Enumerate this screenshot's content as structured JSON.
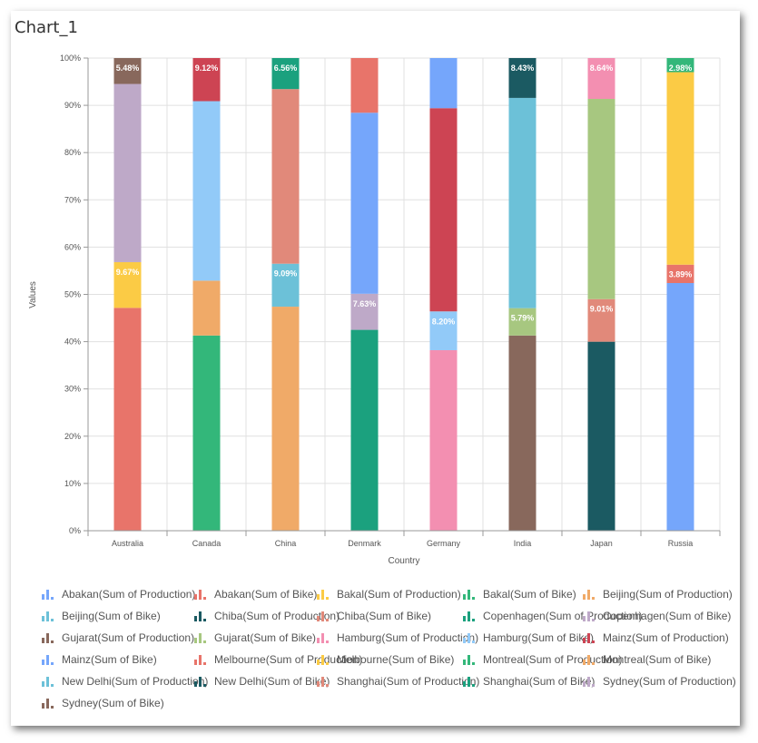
{
  "title": "Chart_1",
  "chart_data": {
    "type": "bar",
    "stacked": "percent",
    "title": "Chart_1",
    "xlabel": "Country",
    "ylabel": "Values",
    "ylim": [
      0,
      100
    ],
    "yticks": [
      "0%",
      "10%",
      "20%",
      "30%",
      "40%",
      "50%",
      "60%",
      "70%",
      "80%",
      "90%",
      "100%"
    ],
    "grid": true,
    "legend_position": "bottom",
    "categories": [
      "Australia",
      "Canada",
      "China",
      "Denmark",
      "Germany",
      "India",
      "Japan",
      "Russia"
    ],
    "series": [
      {
        "name": "Abakan(Sum of Production)",
        "color": "#75A6FB",
        "values": [
          0,
          0,
          0,
          0,
          0,
          0,
          0,
          52.4
        ]
      },
      {
        "name": "Abakan(Sum of Bike)",
        "color": "#E8746A",
        "values": [
          47.15,
          0,
          0,
          0,
          0,
          0,
          0,
          3.89
        ]
      },
      {
        "name": "Bakal(Sum of Production)",
        "color": "#FBCB45",
        "values": [
          9.67,
          0,
          0,
          0,
          0,
          0,
          0,
          0
        ]
      },
      {
        "name": "Bakal(Sum of Bike)",
        "color": "#33B77A",
        "values": [
          0,
          0,
          0,
          0,
          0,
          0,
          0,
          2.98
        ]
      },
      {
        "name": "Beijing(Sum of Production)",
        "color": "#F0AA68",
        "values": [
          0,
          0,
          47.4,
          0,
          0,
          0,
          0,
          0
        ]
      },
      {
        "name": "Beijing(Sum of Bike)",
        "color": "#6CC1D8",
        "values": [
          0,
          0,
          9.09,
          0,
          0,
          0,
          0,
          0
        ]
      },
      {
        "name": "Chiba(Sum of Production)",
        "color": "#1B5A62",
        "values": [
          0,
          0,
          0,
          0,
          0,
          0,
          39.99,
          0
        ]
      },
      {
        "name": "Chiba(Sum of Bike)",
        "color": "#E1897A",
        "values": [
          0,
          0,
          0,
          0,
          0,
          0,
          9.01,
          0
        ]
      },
      {
        "name": "Copenhagen(Sum of Production)",
        "color": "#1BA17E",
        "values": [
          0,
          0,
          0,
          42.5,
          0,
          0,
          0,
          0
        ]
      },
      {
        "name": "Copenhagen(Sum of Bike)",
        "color": "#BEA9C8",
        "values": [
          0,
          0,
          0,
          7.63,
          0,
          0,
          0,
          0
        ]
      },
      {
        "name": "Gujarat(Sum of Production)",
        "color": "#88685C",
        "values": [
          0,
          0,
          0,
          0,
          0,
          41.3,
          0,
          0
        ]
      },
      {
        "name": "Gujarat(Sum of Bike)",
        "color": "#A7C780",
        "values": [
          0,
          0,
          0,
          0,
          0,
          5.79,
          42.36,
          0
        ]
      },
      {
        "name": "Hamburg(Sum of Production)",
        "color": "#F38FB1",
        "values": [
          0,
          0,
          0,
          0,
          38.2,
          0,
          8.64,
          0
        ]
      },
      {
        "name": "Hamburg(Sum of Bike)",
        "color": "#92CAF8",
        "values": [
          0,
          37.98,
          0,
          0,
          8.2,
          0,
          0,
          0
        ]
      },
      {
        "name": "Mainz(Sum of Production)",
        "color": "#CD4453",
        "values": [
          0,
          9.12,
          0,
          0,
          43.0,
          0,
          0,
          0
        ]
      },
      {
        "name": "Mainz(Sum of Bike)",
        "color": "#75A6FB",
        "values": [
          0,
          0,
          0,
          38.3,
          10.6,
          0,
          0,
          0
        ]
      },
      {
        "name": "Melbourne(Sum of Production)",
        "color": "#E8746A",
        "values": [
          0,
          0,
          0,
          11.57,
          0,
          0,
          0,
          0
        ]
      },
      {
        "name": "Melbourne(Sum of Bike)",
        "color": "#FBCB45",
        "values": [
          0,
          0,
          0,
          0,
          0,
          0,
          0,
          40.73
        ]
      },
      {
        "name": "Montreal(Sum of Production)",
        "color": "#33B77A",
        "values": [
          0,
          41.3,
          0,
          0,
          0,
          0,
          0,
          0
        ]
      },
      {
        "name": "Montreal(Sum of Bike)",
        "color": "#F0AA68",
        "values": [
          0,
          11.6,
          0,
          0,
          0,
          0,
          0,
          0
        ]
      },
      {
        "name": "New Delhi(Sum of Production)",
        "color": "#6CC1D8",
        "values": [
          0,
          0,
          0,
          0,
          0,
          44.48,
          0,
          0
        ]
      },
      {
        "name": "New Delhi(Sum of Bike)",
        "color": "#1B5A62",
        "values": [
          0,
          0,
          0,
          0,
          0,
          8.43,
          0,
          0
        ]
      },
      {
        "name": "Shanghai(Sum of Production)",
        "color": "#E1897A",
        "values": [
          0,
          0,
          36.95,
          0,
          0,
          0,
          0,
          0
        ]
      },
      {
        "name": "Shanghai(Sum of Bike)",
        "color": "#1BA17E",
        "values": [
          0,
          0,
          6.56,
          0,
          0,
          0,
          0,
          0
        ]
      },
      {
        "name": "Sydney(Sum of Production)",
        "color": "#BEA9C8",
        "values": [
          37.7,
          0,
          0,
          0,
          0,
          0,
          0,
          0
        ]
      },
      {
        "name": "Sydney(Sum of Bike)",
        "color": "#88685C",
        "values": [
          5.48,
          0,
          0,
          0,
          0,
          0,
          0,
          0
        ]
      }
    ],
    "data_labels": [
      {
        "category": "Australia",
        "series": "Sydney(Sum of Bike)",
        "text": "5.48%"
      },
      {
        "category": "Australia",
        "series": "Bakal(Sum of Production)",
        "text": "9.67%"
      },
      {
        "category": "Canada",
        "series": "Mainz(Sum of Production)",
        "text": "9.12%"
      },
      {
        "category": "China",
        "series": "Shanghai(Sum of Bike)",
        "text": "6.56%"
      },
      {
        "category": "China",
        "series": "Beijing(Sum of Bike)",
        "text": "9.09%"
      },
      {
        "category": "Denmark",
        "series": "Copenhagen(Sum of Bike)",
        "text": "7.63%"
      },
      {
        "category": "Germany",
        "series": "Hamburg(Sum of Bike)",
        "text": "8.20%"
      },
      {
        "category": "India",
        "series": "New Delhi(Sum of Bike)",
        "text": "8.43%"
      },
      {
        "category": "India",
        "series": "Gujarat(Sum of Bike)",
        "text": "5.79%"
      },
      {
        "category": "Japan",
        "series": "Hamburg(Sum of Production)",
        "text": "8.64%"
      },
      {
        "category": "Japan",
        "series": "Chiba(Sum of Bike)",
        "text": "9.01%"
      },
      {
        "category": "Russia",
        "series": "Bakal(Sum of Bike)",
        "text": "2.98%"
      },
      {
        "category": "Russia",
        "series": "Abakan(Sum of Bike)",
        "text": "3.89%"
      }
    ],
    "stack_order": {
      "Australia": [
        "Abakan(Sum of Bike)",
        "Bakal(Sum of Production)",
        "Sydney(Sum of Production)",
        "Sydney(Sum of Bike)"
      ],
      "Canada": [
        "Montreal(Sum of Production)",
        "Montreal(Sum of Bike)",
        "Hamburg(Sum of Bike)",
        "Mainz(Sum of Production)"
      ],
      "China": [
        "Beijing(Sum of Production)",
        "Beijing(Sum of Bike)",
        "Shanghai(Sum of Production)",
        "Shanghai(Sum of Bike)"
      ],
      "Denmark": [
        "Copenhagen(Sum of Production)",
        "Copenhagen(Sum of Bike)",
        "Mainz(Sum of Bike)",
        "Melbourne(Sum of Production)"
      ],
      "Germany": [
        "Hamburg(Sum of Production)",
        "Hamburg(Sum of Bike)",
        "Mainz(Sum of Production)",
        "Mainz(Sum of Bike)"
      ],
      "India": [
        "Gujarat(Sum of Production)",
        "Gujarat(Sum of Bike)",
        "New Delhi(Sum of Production)",
        "New Delhi(Sum of Bike)"
      ],
      "Japan": [
        "Chiba(Sum of Production)",
        "Chiba(Sum of Bike)",
        "Gujarat(Sum of Bike)",
        "Hamburg(Sum of Production)"
      ],
      "Russia": [
        "Abakan(Sum of Production)",
        "Abakan(Sum of Bike)",
        "Melbourne(Sum of Bike)",
        "Bakal(Sum of Bike)"
      ]
    }
  }
}
